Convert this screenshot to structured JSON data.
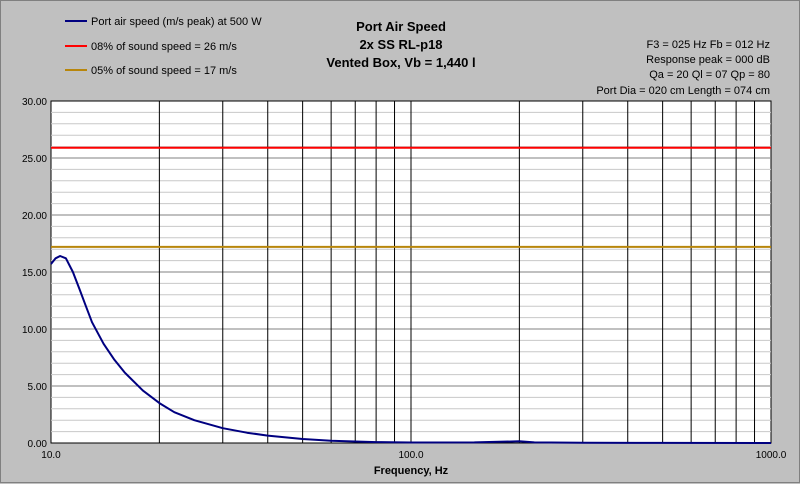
{
  "chart_data": {
    "type": "line",
    "title": "Port Air Speed",
    "subtitle": [
      "2x SS RL-p18",
      "Vented Box, Vb = 1,440 l"
    ],
    "xlabel": "Frequency, Hz",
    "ylabel": "",
    "xscale": "log",
    "xlim": [
      10,
      1000
    ],
    "ylim": [
      0,
      30
    ],
    "x_tick_labels": [
      "10.0",
      "100.0",
      "1000.0"
    ],
    "y_tick_labels": [
      "0.00",
      "5.00",
      "10.00",
      "15.00",
      "20.00",
      "25.00",
      "30.00"
    ],
    "grid": true,
    "legend": [
      {
        "name": "Port air speed (m/s peak) at 500 W",
        "color": "#000080"
      },
      {
        "name": "08% of sound speed = 26 m/s",
        "color": "#ff0000"
      },
      {
        "name": "05% of sound speed = 17 m/s",
        "color": "#b8860b"
      }
    ],
    "info": [
      "F3 = 025 Hz  Fb = 012 Hz",
      "Response peak = 000 dB",
      "Qa = 20   Ql = 07   Qp = 80",
      "Port Dia = 020 cm  Length = 074 cm"
    ],
    "series": [
      {
        "name": "Port air speed (m/s peak) at 500 W",
        "color": "#000080",
        "x": [
          10,
          10.3,
          10.6,
          11,
          11.5,
          12,
          12.5,
          13,
          14,
          15,
          16,
          18,
          20,
          22,
          25,
          30,
          35,
          40,
          50,
          60,
          70,
          80,
          100,
          150,
          200,
          220,
          300,
          500,
          1000
        ],
        "y": [
          15.7,
          16.2,
          16.4,
          16.2,
          15.0,
          13.5,
          12.0,
          10.6,
          8.7,
          7.3,
          6.2,
          4.6,
          3.5,
          2.7,
          2.0,
          1.3,
          0.9,
          0.65,
          0.35,
          0.2,
          0.13,
          0.08,
          0.04,
          0.05,
          0.15,
          0.05,
          0.02,
          0.01,
          0.0
        ]
      },
      {
        "name": "08% of sound speed = 26 m/s",
        "color": "#ff0000",
        "x": [
          10,
          1000
        ],
        "y": [
          25.9,
          25.9
        ]
      },
      {
        "name": "05% of sound speed = 17 m/s",
        "color": "#b8860b",
        "x": [
          10,
          1000
        ],
        "y": [
          17.2,
          17.2
        ]
      }
    ]
  }
}
